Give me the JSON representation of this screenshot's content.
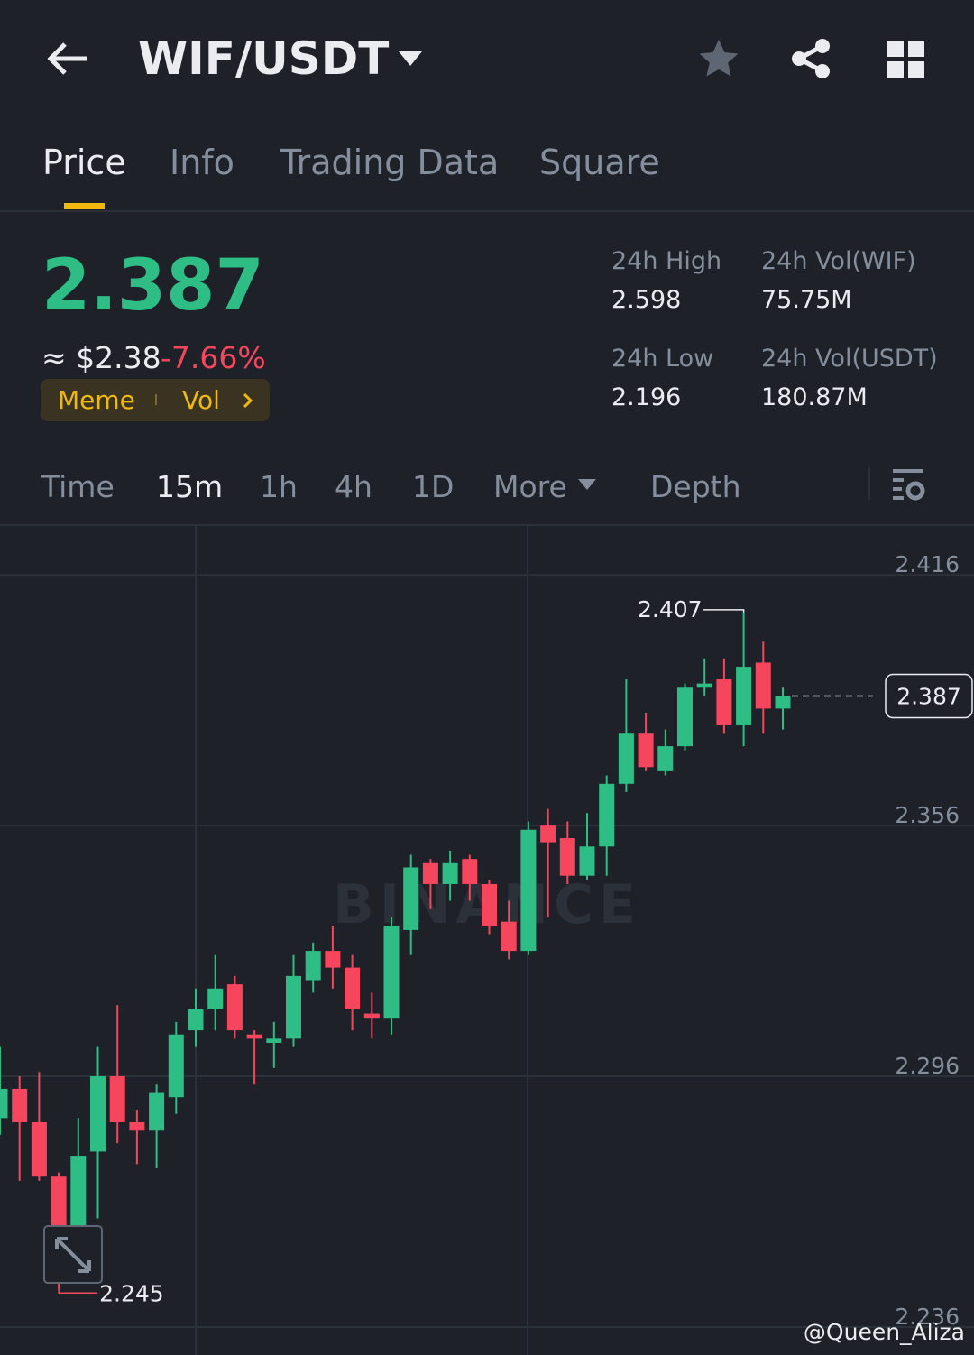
{
  "header": {
    "pair": "WIF/USDT"
  },
  "tabs": [
    "Price",
    "Info",
    "Trading Data",
    "Square"
  ],
  "price": {
    "last": "2.387",
    "fiat": "≈ $2.38",
    "change": "-7.66%",
    "tags": [
      "Meme",
      "Vol"
    ]
  },
  "stats": [
    {
      "label": "24h High",
      "value": "2.598"
    },
    {
      "label": "24h Vol(WIF)",
      "value": "75.75M"
    },
    {
      "label": "24h Low",
      "value": "2.196"
    },
    {
      "label": "24h Vol(USDT)",
      "value": "180.87M"
    }
  ],
  "intervals": [
    "Time",
    "15m",
    "1h",
    "4h",
    "1D",
    "More",
    "Depth"
  ],
  "watermark": "BINANCE",
  "credit": "@Queen_Aliza",
  "chart_data": {
    "type": "candlestick",
    "up_color": "#2ebd85",
    "down_color": "#f6465d",
    "ylim": [
      2.2293,
      2.4277
    ],
    "yticks": [
      2.416,
      2.356,
      2.296,
      2.236
    ],
    "grid": true,
    "open": [
      2.286,
      2.293,
      2.285,
      2.272,
      2.26,
      2.278,
      2.296,
      2.285,
      2.283,
      2.291,
      2.307,
      2.312,
      2.318,
      2.306,
      2.304,
      2.305,
      2.319,
      2.326,
      2.322,
      2.311,
      2.31,
      2.331,
      2.347,
      2.342,
      2.348,
      2.342,
      2.333,
      2.326,
      2.356,
      2.353,
      2.344,
      2.351,
      2.366,
      2.378,
      2.369,
      2.375,
      2.389,
      2.391,
      2.38,
      2.395,
      2.384
    ],
    "high": [
      2.303,
      2.296,
      2.297,
      2.273,
      2.286,
      2.303,
      2.313,
      2.288,
      2.294,
      2.309,
      2.317,
      2.325,
      2.32,
      2.307,
      2.309,
      2.325,
      2.328,
      2.332,
      2.325,
      2.316,
      2.334,
      2.349,
      2.348,
      2.35,
      2.349,
      2.343,
      2.338,
      2.357,
      2.36,
      2.357,
      2.359,
      2.368,
      2.391,
      2.383,
      2.379,
      2.39,
      2.396,
      2.396,
      2.407,
      2.4,
      2.389
    ],
    "low": [
      2.282,
      2.271,
      2.271,
      2.245,
      2.256,
      2.262,
      2.28,
      2.275,
      2.274,
      2.287,
      2.303,
      2.307,
      2.305,
      2.294,
      2.298,
      2.303,
      2.316,
      2.317,
      2.307,
      2.305,
      2.306,
      2.325,
      2.336,
      2.338,
      2.338,
      2.33,
      2.324,
      2.325,
      2.334,
      2.342,
      2.343,
      2.344,
      2.364,
      2.369,
      2.368,
      2.374,
      2.387,
      2.378,
      2.375,
      2.378,
      2.379
    ],
    "close": [
      2.293,
      2.285,
      2.272,
      2.26,
      2.277,
      2.296,
      2.285,
      2.283,
      2.292,
      2.306,
      2.312,
      2.317,
      2.307,
      2.305,
      2.305,
      2.32,
      2.326,
      2.322,
      2.312,
      2.31,
      2.332,
      2.346,
      2.342,
      2.347,
      2.342,
      2.332,
      2.326,
      2.355,
      2.352,
      2.344,
      2.351,
      2.366,
      2.378,
      2.37,
      2.375,
      2.389,
      2.39,
      2.38,
      2.394,
      2.384,
      2.387
    ]
  }
}
